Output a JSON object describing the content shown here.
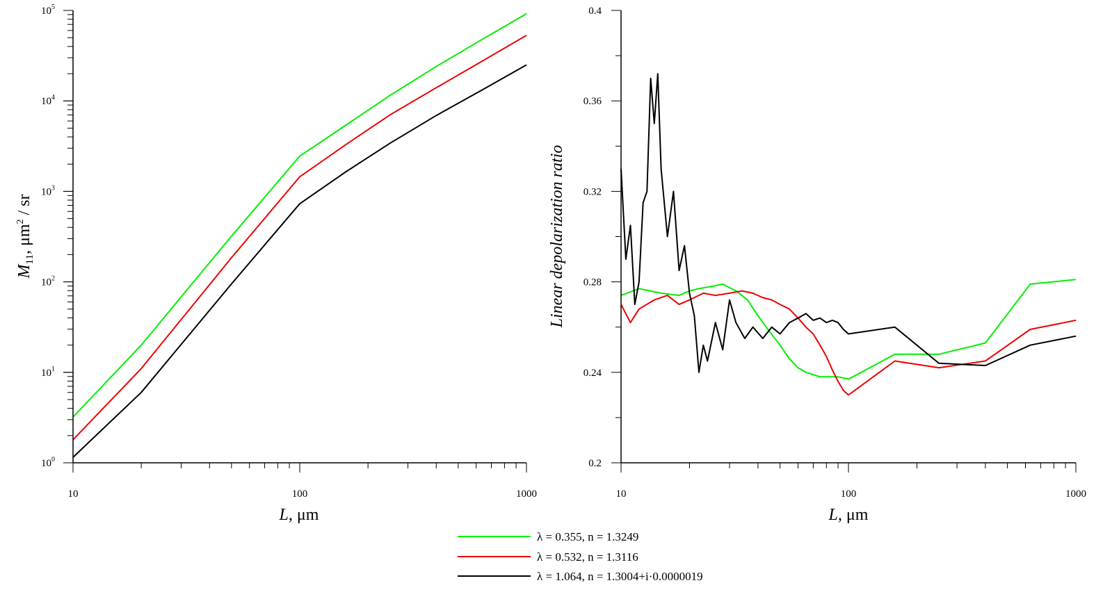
{
  "chart_data": [
    {
      "type": "line",
      "xscale": "log",
      "yscale": "log",
      "xlim": [
        10,
        1000
      ],
      "ylim": [
        1,
        100000
      ],
      "xticks": [
        "10",
        "100",
        "1000"
      ],
      "yticks": [
        "10",
        "10",
        "10",
        "10",
        "10",
        "10"
      ],
      "ytick_exponents": [
        "0",
        "1",
        "2",
        "3",
        "4",
        "5"
      ],
      "xlabel_var": "L,",
      "xlabel_unit": "μm",
      "ylabel_var": "M",
      "ylabel_sub": "11",
      "ylabel_unit_a": ", μm",
      "ylabel_sup": "2",
      "ylabel_unit_b": " / sr",
      "series": [
        {
          "name": "λ = 0.355, n = 1.3249",
          "color": "#00ee00",
          "x": [
            10,
            20,
            50,
            100,
            160,
            250,
            400,
            630,
            1000
          ],
          "y": [
            3.2,
            20,
            320,
            2450,
            5400,
            11500,
            24000,
            47000,
            92000
          ]
        },
        {
          "name": "λ = 0.532, n = 1.3116",
          "color": "#ee0000",
          "x": [
            10,
            20,
            50,
            100,
            160,
            250,
            400,
            630,
            1000
          ],
          "y": [
            1.8,
            11,
            185,
            1450,
            3300,
            7000,
            14000,
            27000,
            53000
          ]
        },
        {
          "name": "λ = 1.064, n = 1.3004+i·0.0000019",
          "color": "#000000",
          "x": [
            10,
            20,
            50,
            100,
            160,
            250,
            400,
            630,
            1000
          ],
          "y": [
            1.15,
            6,
            95,
            730,
            1650,
            3400,
            6900,
            13000,
            25000
          ]
        }
      ]
    },
    {
      "type": "line",
      "xscale": "log",
      "yscale": "linear",
      "xlim": [
        10,
        1000
      ],
      "ylim": [
        0.2,
        0.4
      ],
      "xticks": [
        "10",
        "100",
        "1000"
      ],
      "yticks": [
        "0.2",
        "0.24",
        "0.28",
        "0.32",
        "0.36",
        "0.4"
      ],
      "xlabel_var": "L,",
      "xlabel_unit": "μm",
      "ylabel": "Linear depolarization ratio",
      "series": [
        {
          "name": "λ = 0.355, n = 1.3249",
          "color": "#00ee00",
          "x": [
            10,
            12,
            15,
            18,
            20,
            22,
            25,
            28,
            32,
            36,
            40,
            45,
            50,
            55,
            60,
            65,
            70,
            75,
            80,
            90,
            100,
            160,
            250,
            400,
            630,
            1000
          ],
          "y": [
            0.274,
            0.277,
            0.275,
            0.274,
            0.276,
            0.277,
            0.278,
            0.279,
            0.276,
            0.272,
            0.265,
            0.258,
            0.252,
            0.246,
            0.242,
            0.24,
            0.239,
            0.238,
            0.238,
            0.238,
            0.237,
            0.248,
            0.248,
            0.253,
            0.279,
            0.281
          ]
        },
        {
          "name": "λ = 0.532, n = 1.3116",
          "color": "#ee0000",
          "x": [
            10,
            11,
            12,
            14,
            16,
            18,
            20,
            23,
            26,
            30,
            34,
            38,
            42,
            46,
            50,
            55,
            60,
            65,
            70,
            75,
            80,
            85,
            90,
            95,
            100,
            160,
            250,
            400,
            630,
            1000
          ],
          "y": [
            0.27,
            0.262,
            0.268,
            0.272,
            0.274,
            0.27,
            0.272,
            0.275,
            0.274,
            0.275,
            0.276,
            0.275,
            0.273,
            0.272,
            0.27,
            0.268,
            0.264,
            0.26,
            0.257,
            0.252,
            0.247,
            0.241,
            0.236,
            0.232,
            0.23,
            0.245,
            0.242,
            0.245,
            0.259,
            0.263
          ]
        },
        {
          "name": "λ = 1.064, n = 1.3004+i·0.0000019",
          "color": "#000000",
          "x": [
            10,
            10.5,
            11,
            11.5,
            12,
            12.5,
            13,
            13.5,
            14,
            14.5,
            15,
            16,
            17,
            18,
            19,
            20,
            21,
            22,
            23,
            24,
            26,
            28,
            30,
            32,
            35,
            38,
            42,
            46,
            50,
            55,
            60,
            65,
            70,
            75,
            80,
            85,
            90,
            95,
            100,
            160,
            250,
            400,
            630,
            1000
          ],
          "y": [
            0.33,
            0.29,
            0.305,
            0.27,
            0.28,
            0.315,
            0.32,
            0.37,
            0.35,
            0.372,
            0.33,
            0.3,
            0.32,
            0.285,
            0.296,
            0.275,
            0.265,
            0.24,
            0.252,
            0.245,
            0.262,
            0.25,
            0.272,
            0.262,
            0.255,
            0.26,
            0.255,
            0.26,
            0.257,
            0.262,
            0.264,
            0.266,
            0.263,
            0.264,
            0.262,
            0.263,
            0.262,
            0.259,
            0.257,
            0.26,
            0.244,
            0.243,
            0.252,
            0.256
          ]
        }
      ]
    }
  ]
}
